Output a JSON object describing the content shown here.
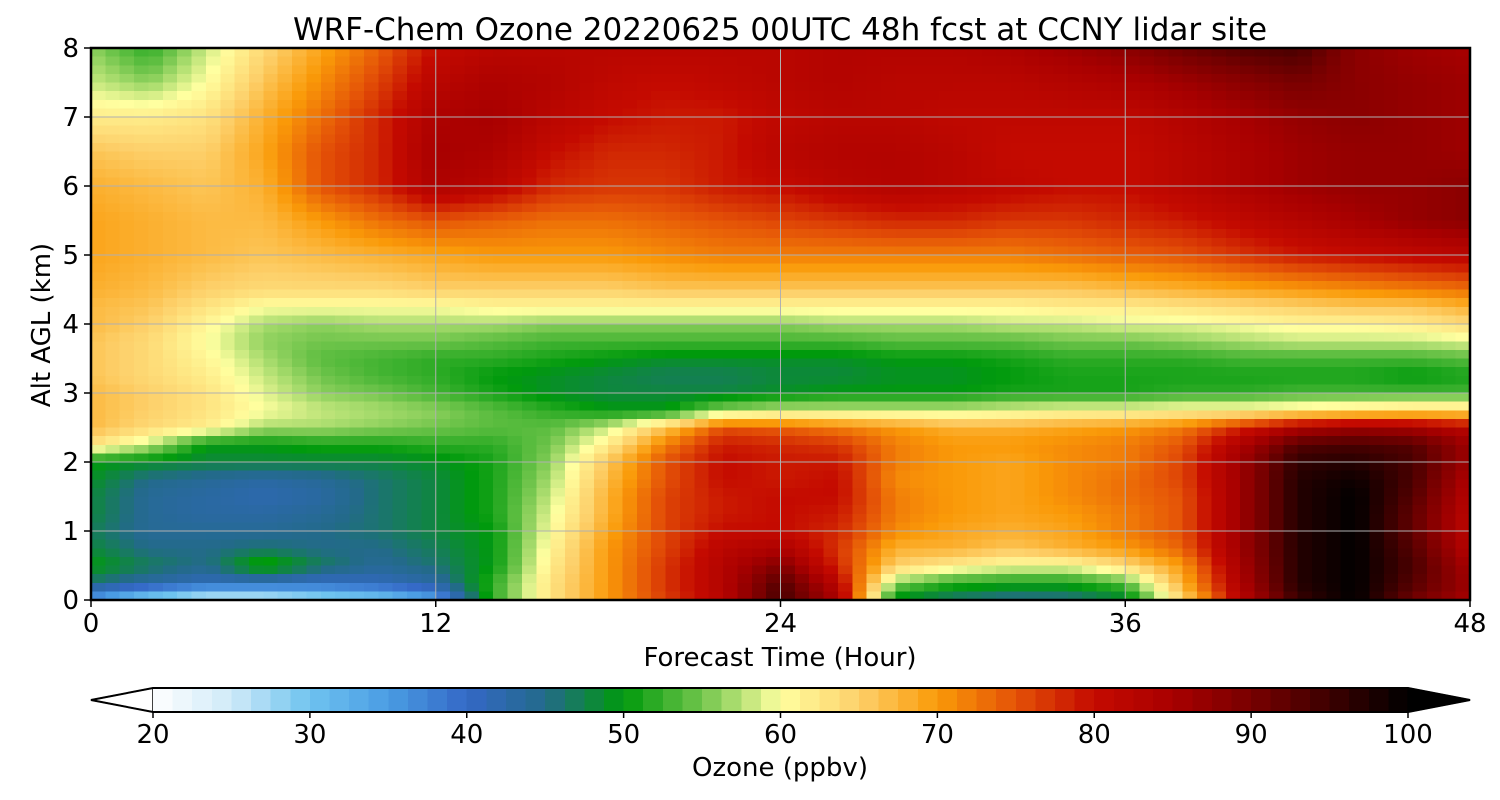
{
  "chart_data": {
    "type": "heatmap",
    "title": "WRF-Chem Ozone  20220625 00UTC 48h fcst at CCNY lidar site",
    "xlabel": "Forecast Time (Hour)",
    "ylabel": "Alt AGL (km)",
    "xlim": [
      0,
      48
    ],
    "ylim": [
      0,
      8
    ],
    "xticks": [
      0,
      12,
      24,
      36,
      48
    ],
    "yticks": [
      0,
      1,
      2,
      3,
      4,
      5,
      6,
      7,
      8
    ],
    "grid": true,
    "x": [
      0,
      2,
      4,
      6,
      8,
      10,
      12,
      14,
      16,
      18,
      20,
      22,
      24,
      26,
      28,
      30,
      32,
      34,
      36,
      38,
      40,
      42,
      44,
      46,
      48
    ],
    "y": [
      0,
      0.1,
      0.25,
      0.5,
      0.75,
      1,
      1.25,
      1.5,
      1.75,
      2,
      2.25,
      2.5,
      2.75,
      3,
      3.25,
      3.5,
      3.75,
      4,
      4.25,
      4.5,
      5,
      5.5,
      6,
      6.5,
      7,
      7.5,
      8
    ],
    "z": [
      [
        36,
        27,
        24,
        24,
        26,
        28,
        34,
        52,
        63,
        70,
        76,
        82,
        94,
        84,
        49,
        46,
        44,
        45,
        48,
        64,
        82,
        95,
        100,
        90,
        84
      ],
      [
        38,
        34,
        30,
        30,
        32,
        34,
        38,
        52,
        63,
        70,
        77,
        83,
        94,
        84,
        51,
        48,
        47,
        47,
        50,
        66,
        83,
        96,
        100,
        92,
        86
      ],
      [
        46,
        43,
        41,
        41,
        40,
        41,
        43,
        52,
        63,
        70,
        77,
        83,
        93,
        82,
        56,
        52,
        51,
        51,
        54,
        68,
        84,
        97,
        100,
        93,
        86
      ],
      [
        50,
        47,
        45,
        52,
        47,
        44,
        46,
        50,
        62,
        70,
        77,
        83,
        89,
        78,
        65,
        62,
        60,
        60,
        64,
        70,
        85,
        97,
        100,
        94,
        85
      ],
      [
        48,
        45,
        45,
        46,
        45,
        45,
        47,
        50,
        61,
        70,
        76,
        82,
        84,
        77,
        68,
        68,
        66,
        68,
        70,
        74,
        86,
        97,
        100,
        93,
        83
      ],
      [
        47,
        44,
        44,
        44,
        45,
        46,
        48,
        50,
        60,
        69,
        76,
        80,
        80,
        78,
        71,
        69,
        68,
        69,
        72,
        75,
        86,
        97,
        100,
        92,
        82
      ],
      [
        48,
        44,
        43,
        43,
        44,
        46,
        48,
        51,
        59,
        68,
        76,
        79,
        80,
        79,
        72,
        70,
        69,
        70,
        72,
        75,
        86,
        97,
        100,
        92,
        82
      ],
      [
        48,
        44,
        43,
        42,
        43,
        46,
        48,
        51,
        58,
        68,
        76,
        79,
        80,
        80,
        72,
        70,
        69,
        71,
        73,
        75,
        86,
        97,
        100,
        93,
        83
      ],
      [
        49,
        45,
        44,
        43,
        44,
        46,
        48,
        51,
        57,
        67,
        75,
        80,
        79,
        80,
        71,
        70,
        69,
        71,
        73,
        76,
        86,
        97,
        99,
        94,
        84
      ],
      [
        50,
        49,
        48,
        48,
        48,
        48,
        49,
        51,
        56,
        66,
        75,
        80,
        79,
        79,
        72,
        70,
        69,
        71,
        72,
        76,
        86,
        96,
        97,
        94,
        86
      ],
      [
        63,
        58,
        50,
        50,
        51,
        51,
        52,
        52,
        55,
        62,
        72,
        79,
        78,
        77,
        72,
        70,
        70,
        71,
        72,
        75,
        84,
        93,
        94,
        93,
        86
      ],
      [
        67,
        64,
        62,
        57,
        57,
        56,
        55,
        54,
        54,
        58,
        66,
        75,
        74,
        72,
        70,
        68,
        68,
        69,
        70,
        72,
        78,
        84,
        86,
        85,
        82
      ],
      [
        67,
        65,
        63,
        60,
        58,
        57,
        56,
        54,
        52,
        50,
        50,
        56,
        58,
        58,
        58,
        58,
        59,
        60,
        60,
        61,
        61,
        62,
        63,
        64,
        64
      ],
      [
        67,
        65,
        63,
        59,
        56,
        55,
        53,
        51,
        49,
        48,
        48,
        48,
        49,
        50,
        50,
        50,
        51,
        51,
        51,
        52,
        52,
        53,
        53,
        53,
        53
      ],
      [
        66,
        64,
        62,
        58,
        55,
        53,
        52,
        50,
        49,
        48,
        47,
        47,
        48,
        48,
        49,
        49,
        50,
        51,
        51,
        51,
        51,
        51,
        51,
        50,
        51
      ],
      [
        66,
        64,
        61,
        57,
        54,
        53,
        52,
        52,
        51,
        50,
        49,
        49,
        49,
        49,
        50,
        50,
        51,
        52,
        52,
        52,
        53,
        53,
        53,
        53,
        54
      ],
      [
        66,
        64,
        60,
        56,
        55,
        55,
        55,
        54,
        53,
        53,
        53,
        53,
        53,
        53,
        54,
        54,
        54,
        55,
        55,
        56,
        57,
        58,
        58,
        58,
        59
      ],
      [
        67,
        65,
        61,
        57,
        56,
        57,
        57,
        57,
        56,
        56,
        56,
        56,
        56,
        57,
        57,
        57,
        58,
        58,
        59,
        59,
        60,
        61,
        61,
        62,
        64
      ],
      [
        67,
        66,
        63,
        60,
        60,
        60,
        60,
        61,
        61,
        61,
        61,
        61,
        61,
        61,
        61,
        61,
        61,
        62,
        62,
        63,
        64,
        65,
        66,
        66,
        68
      ],
      [
        68,
        67,
        65,
        64,
        64,
        64,
        65,
        65,
        65,
        65,
        66,
        66,
        66,
        66,
        66,
        66,
        66,
        66,
        67,
        68,
        69,
        70,
        71,
        72,
        73
      ],
      [
        69,
        68,
        67,
        66,
        67,
        68,
        69,
        70,
        70,
        70,
        71,
        72,
        72,
        72,
        72,
        72,
        72,
        73,
        74,
        75,
        77,
        79,
        80,
        81,
        82
      ],
      [
        69,
        68,
        67,
        67,
        70,
        73,
        75,
        74,
        73,
        73,
        74,
        75,
        76,
        77,
        78,
        78,
        77,
        77,
        78,
        79,
        81,
        83,
        85,
        87,
        88
      ],
      [
        68,
        67,
        66,
        68,
        75,
        78,
        84,
        82,
        78,
        77,
        77,
        79,
        80,
        82,
        83,
        82,
        81,
        80,
        80,
        82,
        84,
        86,
        87,
        87,
        88
      ],
      [
        66,
        65,
        65,
        69,
        75,
        78,
        85,
        84,
        80,
        78,
        78,
        79,
        82,
        83,
        83,
        82,
        80,
        80,
        80,
        82,
        84,
        86,
        87,
        87,
        86
      ],
      [
        62,
        62,
        63,
        68,
        73,
        78,
        84,
        85,
        82,
        80,
        79,
        79,
        81,
        82,
        82,
        81,
        81,
        81,
        81,
        83,
        85,
        87,
        88,
        87,
        86
      ],
      [
        58,
        56,
        60,
        66,
        71,
        76,
        82,
        84,
        83,
        81,
        80,
        81,
        82,
        83,
        82,
        82,
        82,
        83,
        84,
        86,
        88,
        90,
        88,
        87,
        86
      ],
      [
        56,
        52,
        58,
        64,
        69,
        74,
        80,
        82,
        82,
        82,
        82,
        82,
        82,
        83,
        83,
        83,
        84,
        86,
        88,
        91,
        93,
        94,
        88,
        86,
        85
      ]
    ],
    "colorbar": {
      "label": "Ozone  (ppbv)",
      "min": 20,
      "max": 100,
      "ticks": [
        20,
        30,
        40,
        50,
        60,
        70,
        80,
        90,
        100
      ],
      "extend": "both",
      "stops": [
        [
          20,
          "#ffffff"
        ],
        [
          25,
          "#cfeaf8"
        ],
        [
          30,
          "#6ec3ef"
        ],
        [
          35,
          "#4a9ce3"
        ],
        [
          40,
          "#3468c6"
        ],
        [
          45,
          "#236a8a"
        ],
        [
          50,
          "#009a0c"
        ],
        [
          55,
          "#71c54c"
        ],
        [
          60,
          "#ffffa0"
        ],
        [
          65,
          "#fdd06a"
        ],
        [
          70,
          "#fa9a08"
        ],
        [
          75,
          "#e45207"
        ],
        [
          80,
          "#c40a00"
        ],
        [
          85,
          "#a80000"
        ],
        [
          90,
          "#780000"
        ],
        [
          95,
          "#3d0000"
        ],
        [
          100,
          "#000000"
        ]
      ]
    }
  }
}
